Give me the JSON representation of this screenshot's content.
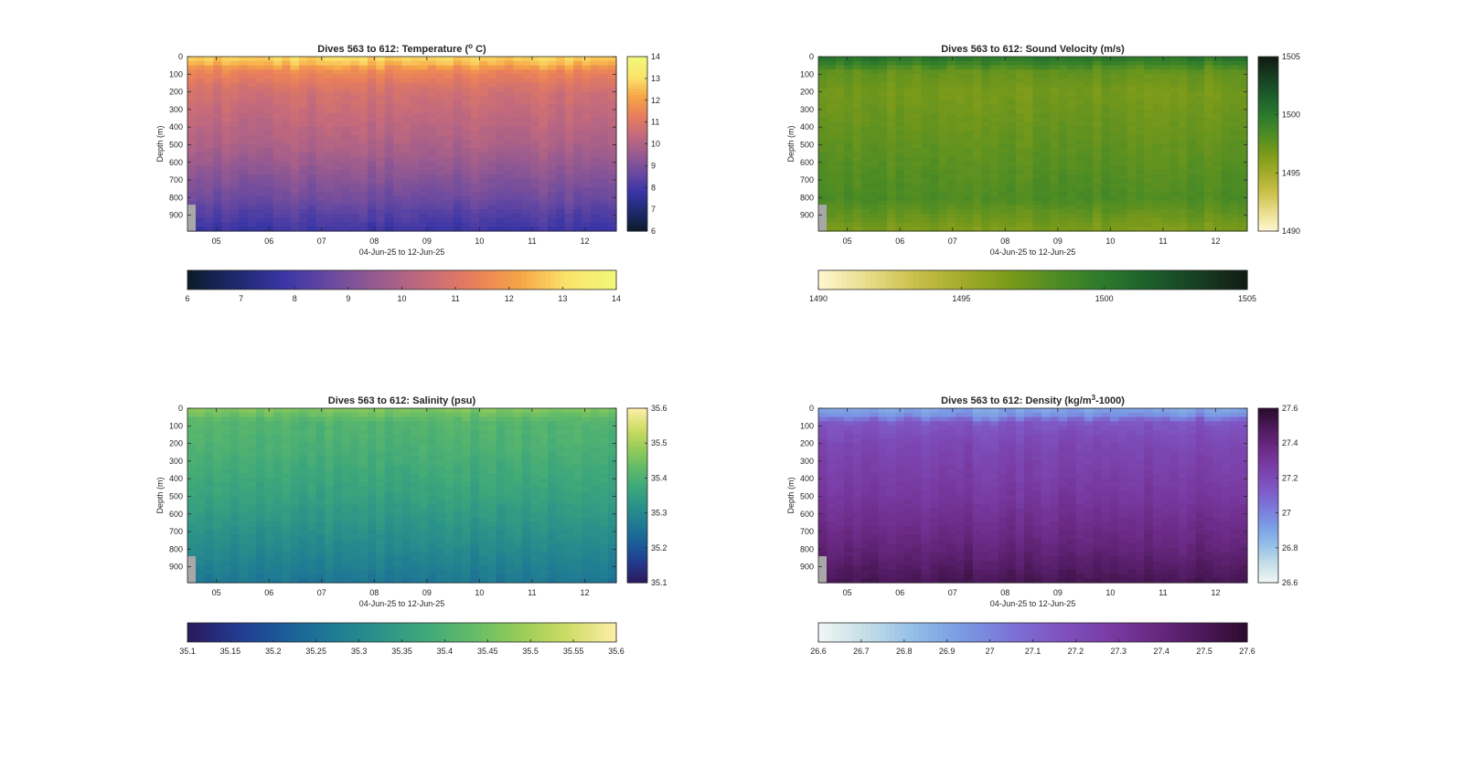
{
  "chart_data": [
    {
      "type": "heatmap",
      "variable": "temperature",
      "title": "Dives 563 to 612: Temperature (",
      "title_sup": "o",
      "title_tail": " C)",
      "xlabel": "04-Jun-25 to 12-Jun-25",
      "ylabel": "Depth (m)",
      "x_ticks": [
        "05",
        "06",
        "07",
        "08",
        "09",
        "10",
        "11",
        "12"
      ],
      "xlim_days": [
        4.45,
        12.6
      ],
      "y_ticks": [
        0,
        100,
        200,
        300,
        400,
        500,
        600,
        700,
        800,
        900
      ],
      "ylim": [
        0,
        990
      ],
      "y_reversed": true,
      "colorbar": {
        "orientation": "vertical",
        "ticks": [
          6,
          7,
          8,
          9,
          10,
          11,
          12,
          13,
          14
        ],
        "range": [
          6,
          14
        ]
      },
      "colorbar_h": {
        "orientation": "horizontal",
        "ticks": [
          "6",
          "7",
          "8",
          "9",
          "10",
          "11",
          "12",
          "13",
          "14"
        ],
        "range": [
          6,
          14
        ]
      },
      "colormap": [
        "#0d1b2e",
        "#1e2a6e",
        "#3a35a6",
        "#6a4aa0",
        "#995b8f",
        "#c46a7c",
        "#e87e5c",
        "#f6a546",
        "#fbe36a",
        "#f2f77a"
      ],
      "profile_depth": [
        0,
        40,
        80,
        200,
        500,
        800,
        990
      ],
      "profile_values": [
        13.0,
        12.6,
        11.6,
        10.8,
        10.0,
        8.8,
        7.8
      ],
      "no_data_color": "#a8a8a8"
    },
    {
      "type": "heatmap",
      "variable": "sound_velocity",
      "title": "Dives 563 to 612: Sound Velocity (m/s)",
      "xlabel": "04-Jun-25 to 12-Jun-25",
      "ylabel": "Depth (m)",
      "x_ticks": [
        "05",
        "06",
        "07",
        "08",
        "09",
        "10",
        "11",
        "12"
      ],
      "xlim_days": [
        4.45,
        12.6
      ],
      "y_ticks": [
        0,
        100,
        200,
        300,
        400,
        500,
        600,
        700,
        800,
        900
      ],
      "ylim": [
        0,
        990
      ],
      "y_reversed": true,
      "colorbar": {
        "orientation": "vertical",
        "ticks": [
          1490,
          1495,
          1500,
          1505
        ],
        "range": [
          1490,
          1505
        ]
      },
      "colorbar_h": {
        "orientation": "horizontal",
        "ticks": [
          "1490",
          "1495",
          "1500",
          "1505"
        ],
        "range": [
          1490,
          1505
        ]
      },
      "colormap": [
        "#fdf6cf",
        "#e8dc8a",
        "#c9c04a",
        "#a3ab2a",
        "#7a9a1a",
        "#4e8c24",
        "#2c7a2c",
        "#1d5e2c",
        "#173f22",
        "#121d14"
      ],
      "profile_depth": [
        0,
        40,
        80,
        200,
        500,
        800,
        990
      ],
      "profile_values": [
        1500.3,
        1499.2,
        1497.5,
        1496.8,
        1497.6,
        1498.4,
        1496.4
      ],
      "no_data_color": "#a8a8a8"
    },
    {
      "type": "heatmap",
      "variable": "salinity",
      "title": "Dives 563 to 612: Salinity (psu)",
      "xlabel": "04-Jun-25 to 12-Jun-25",
      "ylabel": "Depth (m)",
      "x_ticks": [
        "05",
        "06",
        "07",
        "08",
        "09",
        "10",
        "11",
        "12"
      ],
      "xlim_days": [
        4.45,
        12.6
      ],
      "y_ticks": [
        0,
        100,
        200,
        300,
        400,
        500,
        600,
        700,
        800,
        900
      ],
      "ylim": [
        0,
        990
      ],
      "y_reversed": true,
      "colorbar": {
        "orientation": "vertical",
        "ticks": [
          35.1,
          35.2,
          35.3,
          35.4,
          35.5,
          35.6
        ],
        "range": [
          35.1,
          35.6
        ]
      },
      "colorbar_h": {
        "orientation": "horizontal",
        "ticks": [
          "35.1",
          "35.15",
          "35.2",
          "35.25",
          "35.3",
          "35.35",
          "35.4",
          "35.45",
          "35.5",
          "35.55",
          "35.6"
        ],
        "range": [
          35.1,
          35.6
        ]
      },
      "colormap": [
        "#2a1a5e",
        "#233a8f",
        "#1b5c99",
        "#1f7a93",
        "#2a9289",
        "#3fa87a",
        "#63bb68",
        "#97cc58",
        "#cddc64",
        "#faeea6"
      ],
      "profile_depth": [
        0,
        40,
        80,
        200,
        500,
        800,
        990
      ],
      "profile_values": [
        35.47,
        35.44,
        35.41,
        35.4,
        35.36,
        35.3,
        35.26
      ],
      "no_data_color": "#a8a8a8"
    },
    {
      "type": "heatmap",
      "variable": "density",
      "title": "Dives 563 to 612: Density (kg/m",
      "title_sup": "3",
      "title_tail": "-1000)",
      "xlabel": "04-Jun-25 to 12-Jun-25",
      "ylabel": "Depth (m)",
      "x_ticks": [
        "05",
        "06",
        "07",
        "08",
        "09",
        "10",
        "11",
        "12"
      ],
      "xlim_days": [
        4.45,
        12.6
      ],
      "y_ticks": [
        0,
        100,
        200,
        300,
        400,
        500,
        600,
        700,
        800,
        900
      ],
      "ylim": [
        0,
        990
      ],
      "y_reversed": true,
      "colorbar": {
        "orientation": "vertical",
        "ticks": [
          "26.6",
          "26.8",
          "27",
          "27.2",
          "27.4",
          "27.6"
        ],
        "range": [
          26.6,
          27.6
        ]
      },
      "colorbar_h": {
        "orientation": "horizontal",
        "ticks": [
          "26.6",
          "26.7",
          "26.8",
          "26.9",
          "27",
          "27.1",
          "27.2",
          "27.3",
          "27.4",
          "27.5",
          "27.6"
        ],
        "range": [
          26.6,
          27.6
        ]
      },
      "colormap": [
        "#eef6f4",
        "#c2dde6",
        "#91bde8",
        "#7a9ae3",
        "#7c74d8",
        "#7f55c2",
        "#7a3ea7",
        "#6c2a86",
        "#4f1a5e",
        "#2e0c30"
      ],
      "profile_depth": [
        0,
        40,
        80,
        200,
        500,
        800,
        990
      ],
      "profile_values": [
        26.9,
        26.95,
        27.15,
        27.22,
        27.3,
        27.42,
        27.52
      ],
      "no_data_color": "#a8a8a8"
    }
  ]
}
